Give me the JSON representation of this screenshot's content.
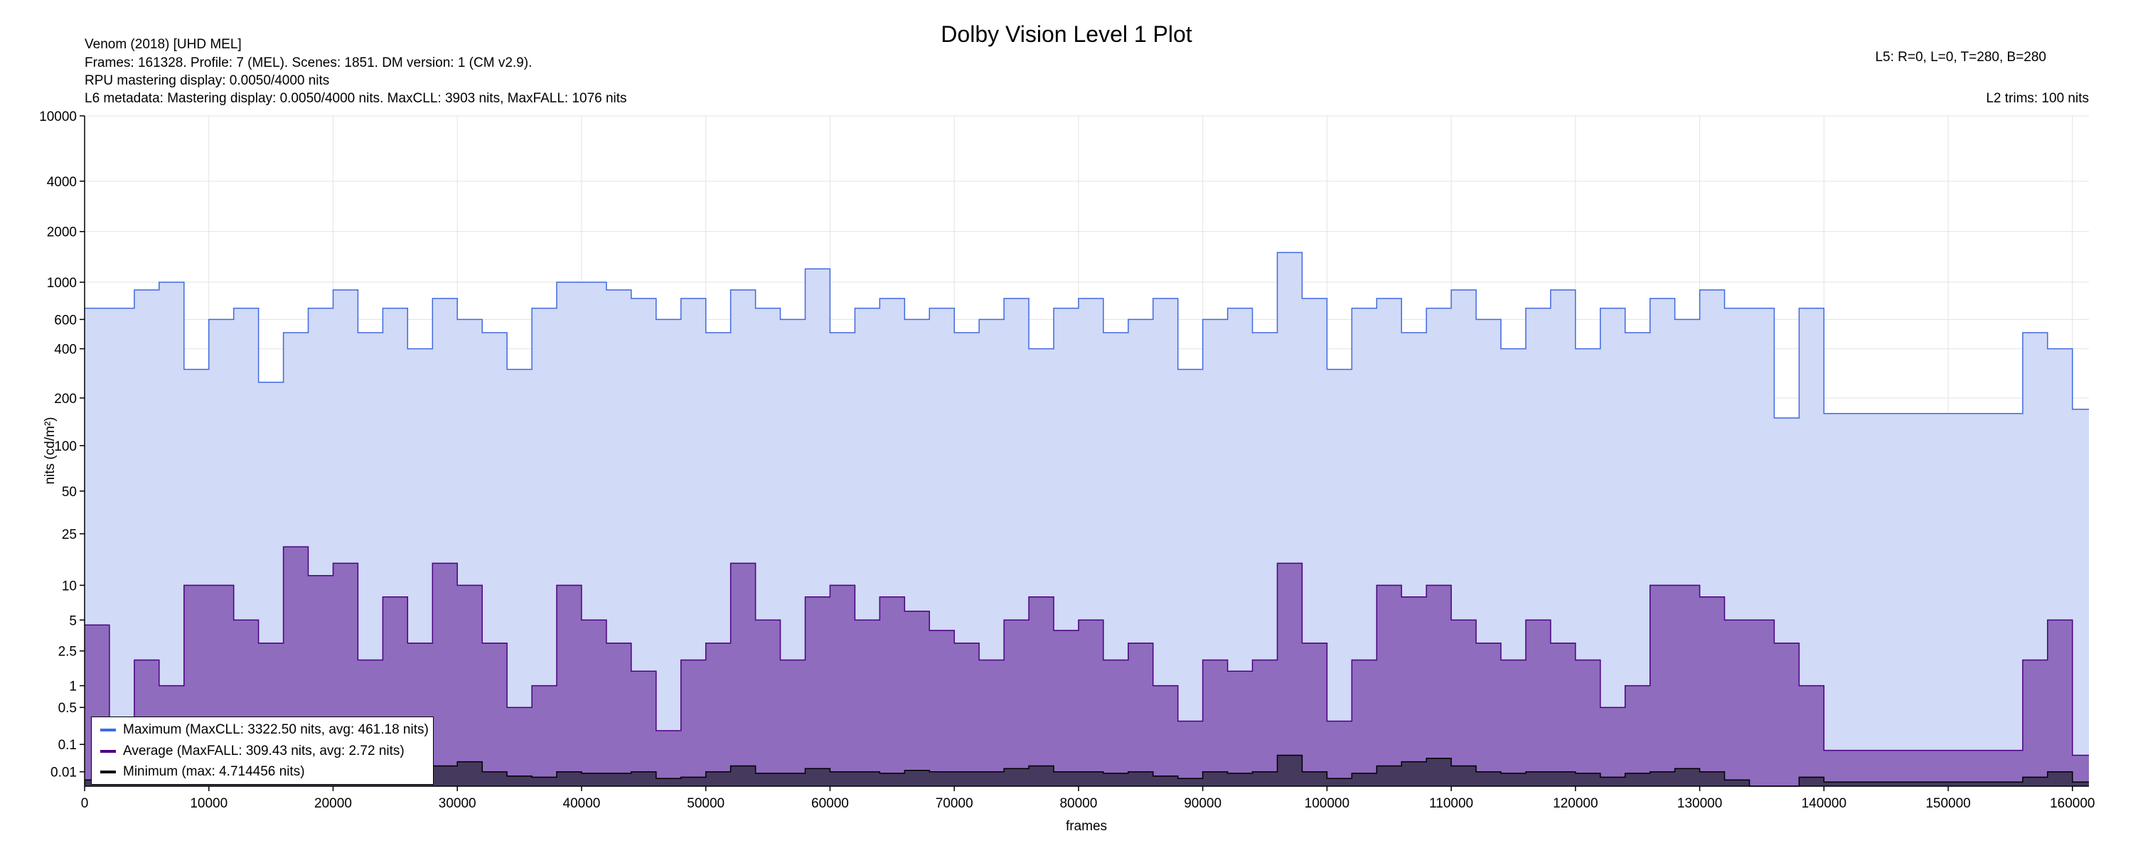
{
  "header": {
    "title": "Dolby Vision Level 1 Plot",
    "line1": "Venom (2018) [UHD MEL]",
    "line2": "Frames: 161328. Profile: 7 (MEL). Scenes: 1851. DM version: 1 (CM v2.9).",
    "line3": "RPU mastering display: 0.0050/4000 nits",
    "line4": "L6 metadata: Mastering display: 0.0050/4000 nits. MaxCLL: 3903 nits, MaxFALL: 1076 nits",
    "l5": "L5: R=0, L=0, T=280, B=280",
    "l2": "L2 trims: 100 nits"
  },
  "chart_data": {
    "type": "area",
    "title": "Dolby Vision Level 1 Plot",
    "xlabel": "frames",
    "ylabel": "nits (cd/m²)",
    "yscale": "pq",
    "xlim": [
      0,
      161328
    ],
    "ylim": [
      0,
      10000
    ],
    "grid": true,
    "legend_position": "bottom-left",
    "x_ticks": [
      0,
      10000,
      20000,
      30000,
      40000,
      50000,
      60000,
      70000,
      80000,
      90000,
      100000,
      110000,
      120000,
      130000,
      140000,
      150000,
      160000
    ],
    "y_ticks": [
      0.01,
      0.1,
      0.5,
      1,
      2.5,
      5,
      10,
      25,
      50,
      100,
      200,
      400,
      600,
      1000,
      2000,
      4000,
      10000
    ],
    "x": [
      0,
      2000,
      4000,
      6000,
      8000,
      10000,
      12000,
      14000,
      16000,
      18000,
      20000,
      22000,
      24000,
      26000,
      28000,
      30000,
      32000,
      34000,
      36000,
      38000,
      40000,
      42000,
      44000,
      46000,
      48000,
      50000,
      52000,
      54000,
      56000,
      58000,
      60000,
      62000,
      64000,
      66000,
      68000,
      70000,
      72000,
      74000,
      76000,
      78000,
      80000,
      82000,
      84000,
      86000,
      88000,
      90000,
      92000,
      94000,
      96000,
      98000,
      100000,
      102000,
      104000,
      106000,
      108000,
      110000,
      112000,
      114000,
      116000,
      118000,
      120000,
      122000,
      124000,
      126000,
      128000,
      130000,
      132000,
      134000,
      136000,
      138000,
      140000,
      142000,
      144000,
      146000,
      148000,
      150000,
      152000,
      154000,
      156000,
      158000,
      160000,
      161328
    ],
    "series": [
      {
        "name": "Maximum (MaxCLL: 3322.50 nits, avg: 461.18 nits)",
        "color": "#4169e1",
        "fill": "#d1daf6",
        "values": [
          700,
          700,
          900,
          1000,
          300,
          600,
          700,
          250,
          500,
          700,
          900,
          500,
          700,
          400,
          800,
          600,
          500,
          300,
          700,
          1000,
          1000,
          900,
          800,
          600,
          800,
          500,
          900,
          700,
          600,
          1200,
          500,
          700,
          800,
          600,
          700,
          500,
          600,
          800,
          400,
          700,
          800,
          500,
          600,
          800,
          300,
          600,
          700,
          500,
          1500,
          800,
          300,
          700,
          800,
          500,
          700,
          900,
          600,
          400,
          700,
          900,
          400,
          700,
          500,
          800,
          600,
          900,
          700,
          700,
          150,
          700,
          160,
          160,
          160,
          160,
          160,
          160,
          160,
          160,
          500,
          400,
          170,
          170
        ]
      },
      {
        "name": "Average (MaxFALL: 309.43 nits, avg: 2.72 nits)",
        "color": "#4b0082",
        "fill": "#8f6cbd",
        "values": [
          4.5,
          0.05,
          2,
          1,
          10,
          10,
          5,
          3,
          20,
          12,
          15,
          2,
          8,
          3,
          15,
          10,
          3,
          0.5,
          1,
          10,
          5,
          3,
          1.5,
          0.2,
          2,
          3,
          15,
          5,
          2,
          8,
          10,
          5,
          8,
          6,
          4,
          3,
          2,
          5,
          8,
          4,
          5,
          2,
          3,
          1,
          0.3,
          2,
          1.5,
          2,
          15,
          3,
          0.3,
          2,
          10,
          8,
          10,
          5,
          3,
          2,
          5,
          3,
          2,
          0.5,
          1,
          10,
          10,
          8,
          5,
          5,
          3,
          1,
          0.07,
          0.07,
          0.07,
          0.07,
          0.07,
          0.07,
          0.07,
          0.07,
          2,
          5,
          0.05,
          0.05
        ]
      },
      {
        "name": "Minimum (max: 4.714456 nits)",
        "color": "#000000",
        "fill": "#453a5e",
        "values": [
          0.002,
          0.002,
          0.003,
          0.003,
          0.004,
          0.004,
          0.005,
          0.004,
          0.004,
          0.005,
          0.004,
          0.005,
          0.006,
          0.01,
          0.02,
          0.03,
          0.01,
          0.005,
          0.004,
          0.01,
          0.008,
          0.008,
          0.01,
          0.003,
          0.004,
          0.01,
          0.02,
          0.008,
          0.008,
          0.015,
          0.01,
          0.01,
          0.008,
          0.012,
          0.01,
          0.01,
          0.01,
          0.015,
          0.02,
          0.01,
          0.01,
          0.008,
          0.01,
          0.005,
          0.003,
          0.01,
          0.008,
          0.01,
          0.05,
          0.01,
          0.003,
          0.008,
          0.02,
          0.03,
          0.04,
          0.02,
          0.01,
          0.008,
          0.01,
          0.01,
          0.008,
          0.004,
          0.008,
          0.01,
          0.015,
          0.01,
          0.002,
          0.0,
          0.0,
          0.004,
          0.001,
          0.001,
          0.001,
          0.001,
          0.001,
          0.001,
          0.001,
          0.001,
          0.004,
          0.01,
          0.001,
          0.001
        ]
      }
    ]
  }
}
